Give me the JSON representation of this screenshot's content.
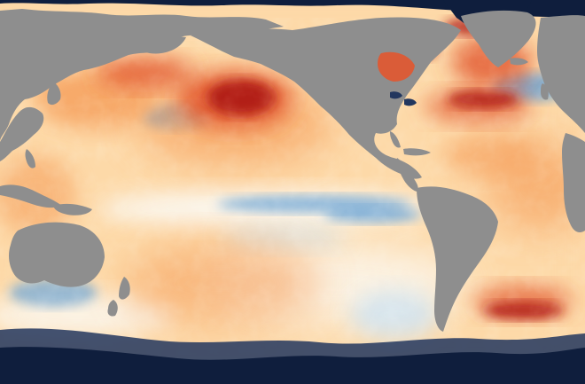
{
  "map": {
    "colors": {
      "land": "#8e8e8e",
      "ice": "#0f1e3d",
      "ice_edge": "#22365e",
      "anomaly_neutral": "#fbf8f1",
      "anomaly_warm_light": "#fdd9a8",
      "anomaly_warm": "#f6a15f",
      "anomaly_hot": "#e2562f",
      "anomaly_very_hot": "#b01d17",
      "anomaly_cool_light": "#cfe4f4",
      "anomaly_cool": "#6ea6d6",
      "anomaly_cold": "#2d6aae"
    }
  }
}
